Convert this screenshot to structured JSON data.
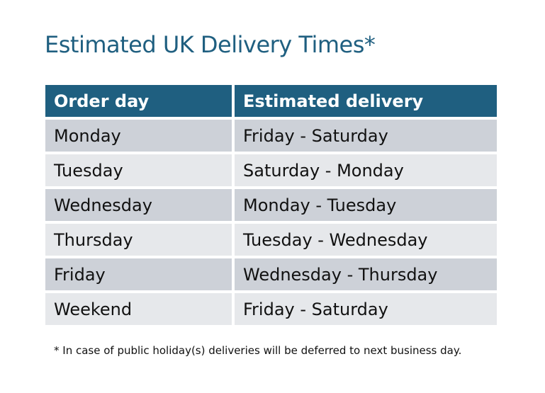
{
  "title": "Estimated UK Delivery Times*",
  "table": {
    "headers": [
      "Order day",
      "Estimated delivery"
    ],
    "rows": [
      [
        "Monday",
        "Friday - Saturday"
      ],
      [
        "Tuesday",
        "Saturday - Monday"
      ],
      [
        "Wednesday",
        "Monday - Tuesday"
      ],
      [
        "Thursday",
        "Tuesday - Wednesday"
      ],
      [
        "Friday",
        "Wednesday - Thursday"
      ],
      [
        "Weekend",
        "Friday - Saturday"
      ]
    ]
  },
  "footnote": "* In case of public holiday(s) deliveries will be deferred to next business day.",
  "colors": {
    "header": "#1f5f80",
    "row_dark": "#cdd1d8",
    "row_light": "#e6e8eb"
  }
}
